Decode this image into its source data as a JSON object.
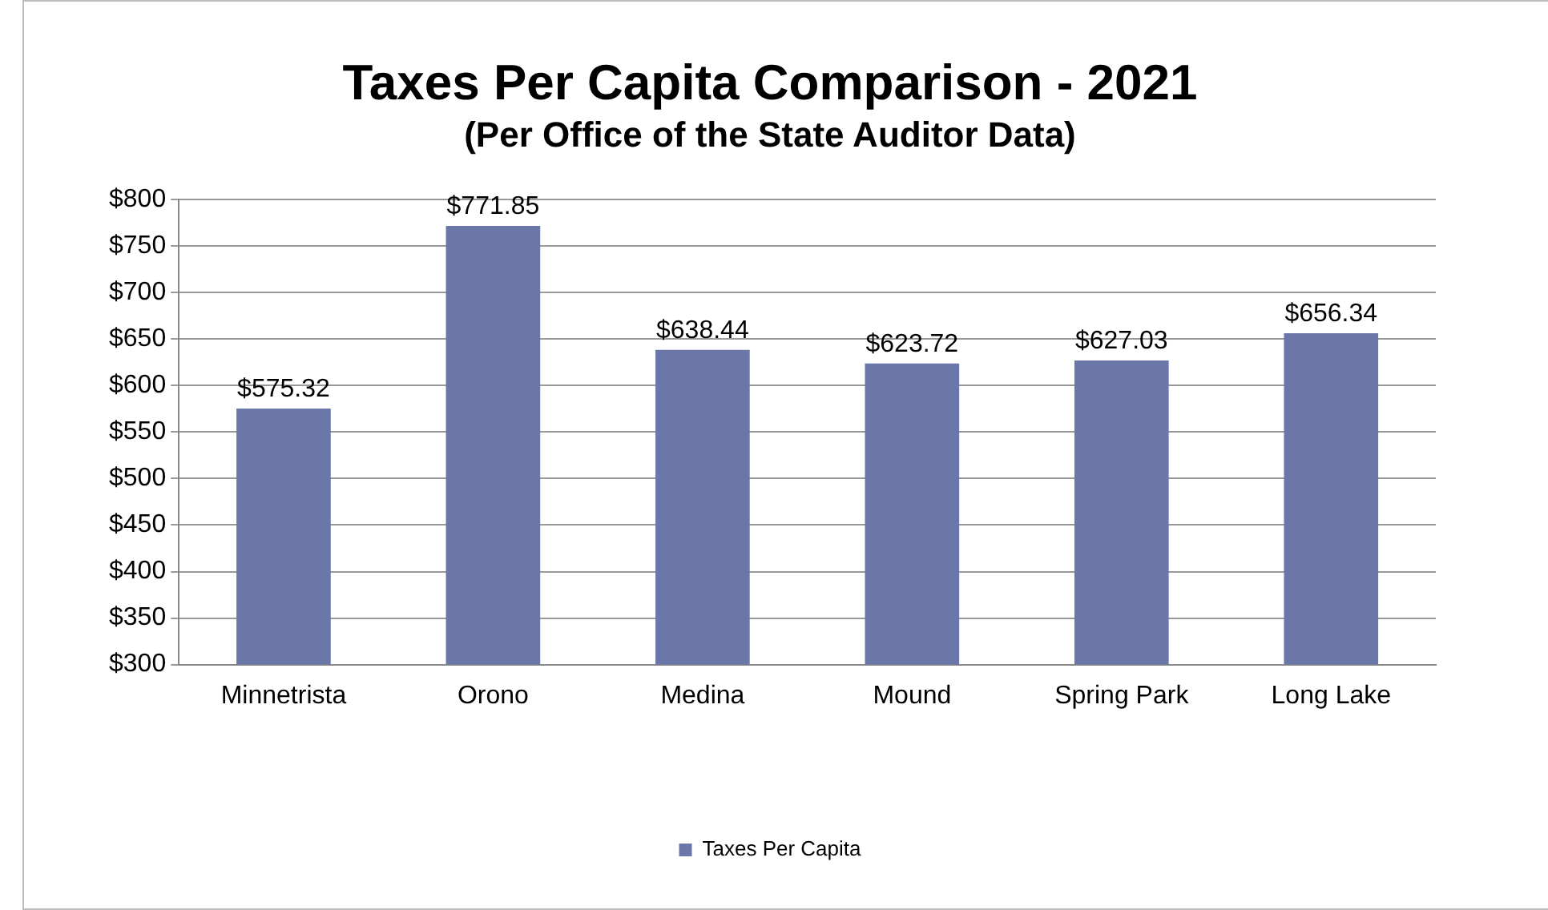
{
  "chart_data": {
    "type": "bar",
    "title": "Taxes Per Capita Comparison - 2021",
    "subtitle": "(Per Office of the State Auditor Data)",
    "categories": [
      "Minnetrista",
      "Orono",
      "Medina",
      "Mound",
      "Spring Park",
      "Long Lake"
    ],
    "series": [
      {
        "name": "Taxes Per Capita",
        "color": "#6b77a8",
        "values": [
          575.32,
          771.85,
          638.44,
          623.72,
          627.03,
          656.34
        ],
        "value_labels": [
          "$575.32",
          "$771.85",
          "$638.44",
          "$623.72",
          "$627.03",
          "$656.34"
        ]
      }
    ],
    "ylim": [
      300,
      800
    ],
    "yticks": [
      {
        "value": 300,
        "label": "$300"
      },
      {
        "value": 350,
        "label": "$350"
      },
      {
        "value": 400,
        "label": "$400"
      },
      {
        "value": 450,
        "label": "$450"
      },
      {
        "value": 500,
        "label": "$500"
      },
      {
        "value": 550,
        "label": "$550"
      },
      {
        "value": 600,
        "label": "$600"
      },
      {
        "value": 650,
        "label": "$650"
      },
      {
        "value": 700,
        "label": "$700"
      },
      {
        "value": 750,
        "label": "$750"
      },
      {
        "value": 800,
        "label": "$800"
      }
    ],
    "grid": "y",
    "legend": "bottom"
  }
}
